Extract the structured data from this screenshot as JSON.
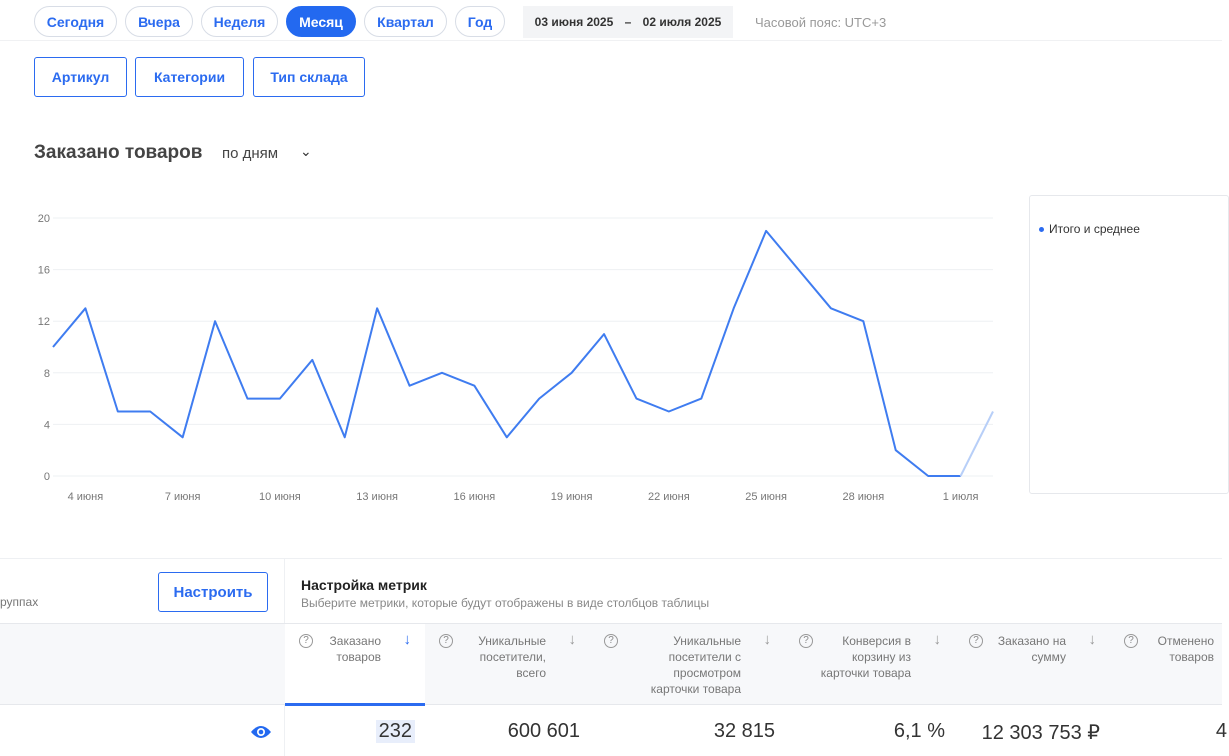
{
  "periods": [
    "Сегодня",
    "Вчера",
    "Неделя",
    "Месяц",
    "Квартал",
    "Год"
  ],
  "active_period": "Месяц",
  "date_from": "03 июня 2025",
  "date_sep": "–",
  "date_to": "02 июля 2025",
  "timezone": "Часовой пояс: UTC+3",
  "filters": [
    "Артикул",
    "Категории",
    "Тип склада"
  ],
  "chart_title": "Заказано товаров",
  "granularity": "по дням",
  "legend": "Итого и среднее",
  "accent": "#2369f0",
  "chart_data": {
    "type": "line",
    "x": [
      "3 июня",
      "4 июня",
      "5 июня",
      "6 июня",
      "7 июня",
      "8 июня",
      "9 июня",
      "10 июня",
      "11 июня",
      "12 июня",
      "13 июня",
      "14 июня",
      "15 июня",
      "16 июня",
      "17 июня",
      "18 июня",
      "19 июня",
      "20 июня",
      "21 июня",
      "22 июня",
      "23 июня",
      "24 июня",
      "25 июня",
      "26 июня",
      "27 июня",
      "28 июня",
      "29 июня",
      "30 июня",
      "1 июля",
      "2 июля"
    ],
    "series": [
      {
        "name": "Итого и среднее",
        "values": [
          10,
          13,
          5,
          5,
          3,
          12,
          6,
          6,
          9,
          3,
          13,
          7,
          8,
          7,
          3,
          6,
          8,
          11,
          6,
          5,
          6,
          13,
          19,
          16,
          13,
          12,
          2,
          0,
          0,
          5
        ]
      }
    ],
    "xticks": [
      "4 июня",
      "7 июня",
      "10 июня",
      "13 июня",
      "16 июня",
      "19 июня",
      "22 июня",
      "25 июня",
      "28 июня",
      "1 июля"
    ],
    "yticks": [
      0,
      4,
      8,
      12,
      16,
      20
    ],
    "ylim": [
      0,
      20
    ],
    "grid": true,
    "legend_position": "right"
  },
  "groups_text": "руппах",
  "configure": "Настроить",
  "metrics_title": "Настройка метрик",
  "metrics_sub": "Выберите метрики, которые будут отображены в виде столбцов таблицы",
  "columns": [
    {
      "label": "Заказано\nтоваров",
      "value": "232"
    },
    {
      "label": "Уникальные\nпосетители,\nвсего",
      "value": "600 601"
    },
    {
      "label": "Уникальные\nпосетители с\nпросмотром\nкарточки товара",
      "value": "32 815"
    },
    {
      "label": "Конверсия в\nкорзину из\nкарточки товара",
      "value": "6,1 %"
    },
    {
      "label": "Заказано на\nсумму",
      "value": "12 303 753 ₽"
    },
    {
      "label": "Отменено\nтоваров",
      "value": "4"
    }
  ]
}
